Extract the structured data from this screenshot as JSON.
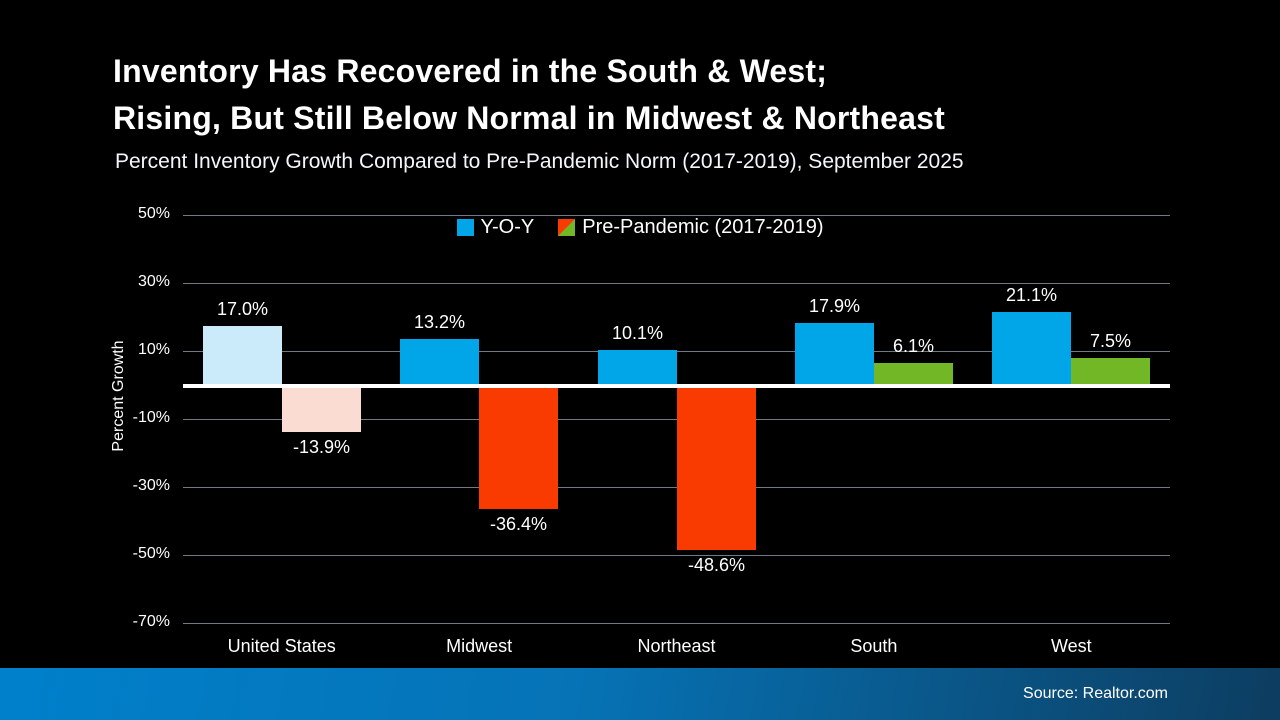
{
  "slide": {
    "title_line1": "Inventory Has Recovered in the South & West;",
    "title_line2": "Rising, But Still Below Normal in Midwest & Northeast",
    "subtitle": "Percent Inventory Growth Compared to Pre-Pandemic Norm (2017-2019), September 2025",
    "source": "Source: Realtor.com"
  },
  "colors": {
    "background_top": "#02131e",
    "background_bottom": "#0a3450",
    "yoy_blue": "#00a6e8",
    "yoy_pale_blue": "#cbeafa",
    "pre_red": "#fa3b01",
    "pre_pale_pink": "#fbdcd3",
    "pre_green": "#72b726",
    "gridline": "#6e7b85",
    "zero_line": "#ffffff",
    "footer_left": "#0080cb",
    "footer_right": "#0d3d60",
    "text": "#ffffff"
  },
  "chart_data": {
    "type": "bar",
    "title": "Inventory Has Recovered in the South & West; Rising, But Still Below Normal in Midwest & Northeast",
    "subtitle": "Percent Inventory Growth Compared to Pre-Pandemic Norm (2017-2019), September 2025",
    "categories": [
      "United States",
      "Midwest",
      "Northeast",
      "South",
      "West"
    ],
    "series": [
      {
        "name": "Y-O-Y",
        "values": [
          17.0,
          13.2,
          10.1,
          17.9,
          21.1
        ],
        "labels": [
          "17.0%",
          "13.2%",
          "10.1%",
          "17.9%",
          "21.1%"
        ],
        "bar_colors": [
          "#cbeafa",
          "#00a6e8",
          "#00a6e8",
          "#00a6e8",
          "#00a6e8"
        ]
      },
      {
        "name": "Pre-Pandemic (2017-2019)",
        "values": [
          -13.9,
          -36.4,
          -48.6,
          6.1,
          7.5
        ],
        "labels": [
          "-13.9%",
          "-36.4%",
          "-48.6%",
          "6.1%",
          "7.5%"
        ],
        "bar_colors": [
          "#fbdcd3",
          "#fa3b01",
          "#fa3b01",
          "#72b726",
          "#72b726"
        ]
      }
    ],
    "xlabel": "",
    "ylabel": "Percent Growth",
    "ylim": [
      -70,
      50
    ],
    "yticks": [
      50,
      30,
      10,
      -10,
      -30,
      -50,
      -70
    ],
    "ytick_labels": [
      "50%",
      "30%",
      "10%",
      "-10%",
      "-30%",
      "-50%",
      "-70%"
    ],
    "grid": true,
    "legend_position": "top-center",
    "legend": [
      {
        "label": "Y-O-Y",
        "swatch": "solid-blue"
      },
      {
        "label": "Pre-Pandemic (2017-2019)",
        "swatch": "split-red-green"
      }
    ]
  }
}
